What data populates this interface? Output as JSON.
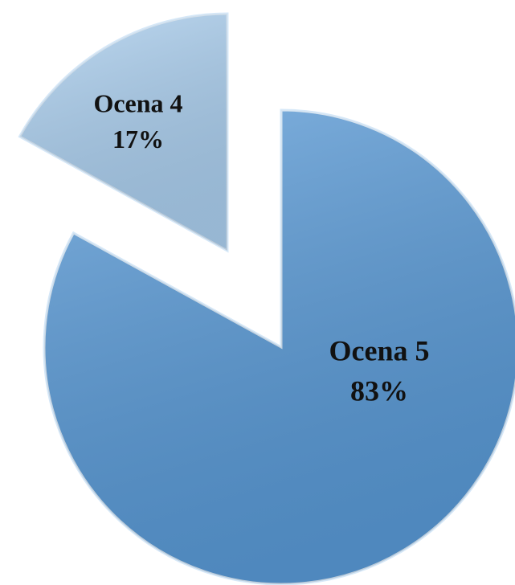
{
  "chart_data": {
    "type": "pie",
    "categories": [
      "Ocena 5",
      "Ocena 4"
    ],
    "values": [
      83,
      17
    ],
    "value_labels": [
      "83%",
      "17%"
    ],
    "colors": [
      "#5a9bd8",
      "#acd0f0"
    ]
  }
}
